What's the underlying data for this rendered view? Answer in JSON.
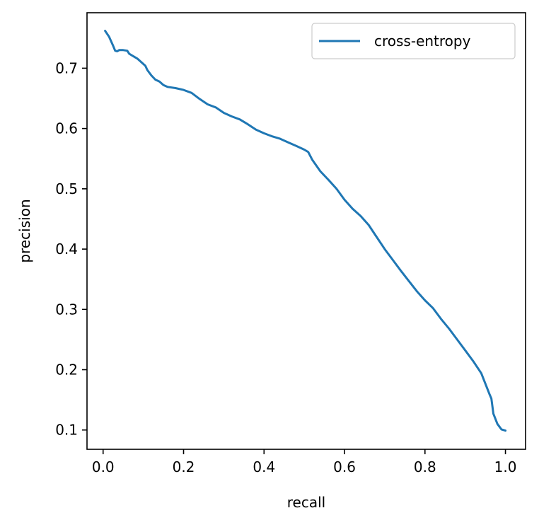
{
  "chart_data": {
    "type": "line",
    "xlabel": "recall",
    "ylabel": "precision",
    "xlim": [
      -0.04,
      1.05
    ],
    "ylim": [
      0.068,
      0.792
    ],
    "xticks": [
      0.0,
      0.2,
      0.4,
      0.6,
      0.8,
      1.0
    ],
    "xtick_labels": [
      "0.0",
      "0.2",
      "0.4",
      "0.6",
      "0.8",
      "1.0"
    ],
    "yticks": [
      0.1,
      0.2,
      0.3,
      0.4,
      0.5,
      0.6,
      0.7
    ],
    "ytick_labels": [
      "0.1",
      "0.2",
      "0.3",
      "0.4",
      "0.5",
      "0.6",
      "0.7"
    ],
    "grid": false,
    "legend_position": "top-right",
    "series": [
      {
        "name": "cross-entropy",
        "color": "#1f77b4",
        "x": [
          0.005,
          0.015,
          0.025,
          0.03,
          0.035,
          0.04,
          0.05,
          0.06,
          0.065,
          0.075,
          0.085,
          0.095,
          0.105,
          0.11,
          0.12,
          0.13,
          0.14,
          0.15,
          0.16,
          0.18,
          0.2,
          0.22,
          0.24,
          0.26,
          0.28,
          0.3,
          0.32,
          0.34,
          0.36,
          0.38,
          0.4,
          0.42,
          0.44,
          0.46,
          0.48,
          0.5,
          0.51,
          0.52,
          0.54,
          0.56,
          0.58,
          0.6,
          0.62,
          0.64,
          0.66,
          0.68,
          0.7,
          0.72,
          0.74,
          0.76,
          0.78,
          0.8,
          0.82,
          0.84,
          0.86,
          0.88,
          0.9,
          0.92,
          0.94,
          0.95,
          0.96,
          0.965,
          0.97,
          0.98,
          0.99,
          1.0
        ],
        "y": [
          0.762,
          0.752,
          0.737,
          0.729,
          0.728,
          0.73,
          0.73,
          0.729,
          0.724,
          0.72,
          0.716,
          0.71,
          0.704,
          0.697,
          0.688,
          0.681,
          0.678,
          0.672,
          0.669,
          0.667,
          0.664,
          0.659,
          0.649,
          0.64,
          0.635,
          0.626,
          0.62,
          0.615,
          0.607,
          0.598,
          0.592,
          0.587,
          0.583,
          0.577,
          0.571,
          0.565,
          0.561,
          0.548,
          0.529,
          0.515,
          0.5,
          0.482,
          0.467,
          0.455,
          0.44,
          0.42,
          0.4,
          0.382,
          0.364,
          0.347,
          0.33,
          0.315,
          0.302,
          0.284,
          0.268,
          0.25,
          0.232,
          0.214,
          0.194,
          0.177,
          0.16,
          0.152,
          0.127,
          0.11,
          0.101,
          0.099
        ]
      }
    ]
  }
}
